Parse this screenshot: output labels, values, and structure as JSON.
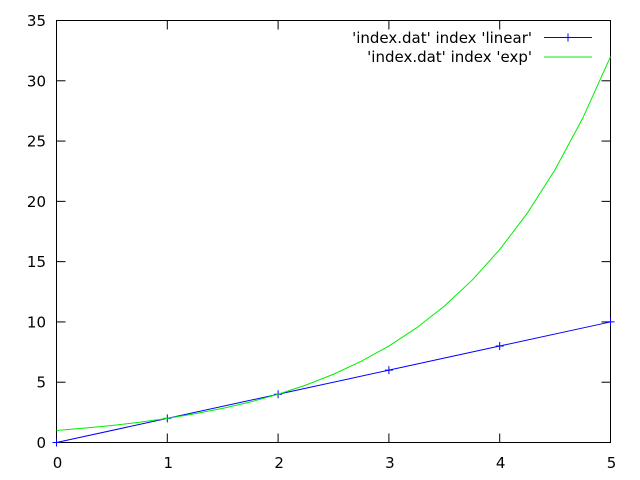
{
  "chart_data": {
    "type": "line",
    "xlim": [
      0,
      5
    ],
    "ylim": [
      0,
      35
    ],
    "x_ticks": [
      "0",
      "1",
      "2",
      "3",
      "4",
      "5"
    ],
    "y_ticks": [
      "0",
      "5",
      "10",
      "15",
      "20",
      "25",
      "30",
      "35"
    ],
    "grid": false,
    "legend_position": "top-right",
    "series": [
      {
        "name": "'index.dat' index 'linear'",
        "color": "#0000ff",
        "marker": "plus",
        "x": [
          0,
          1,
          2,
          3,
          4,
          5
        ],
        "y": [
          0,
          2,
          4,
          6,
          8,
          10
        ]
      },
      {
        "name": "'index.dat' index 'exp'",
        "color": "#00ee00",
        "marker": "none",
        "x": [
          0,
          0.25,
          0.5,
          0.75,
          1,
          1.25,
          1.5,
          1.75,
          2,
          2.25,
          2.5,
          2.75,
          3,
          3.25,
          3.5,
          3.75,
          4,
          4.25,
          4.5,
          4.75,
          5
        ],
        "y": [
          1,
          1.19,
          1.41,
          1.68,
          2,
          2.38,
          2.83,
          3.36,
          4,
          4.76,
          5.66,
          6.73,
          8,
          9.51,
          11.31,
          13.45,
          16,
          19.03,
          22.63,
          26.91,
          32
        ]
      }
    ]
  }
}
